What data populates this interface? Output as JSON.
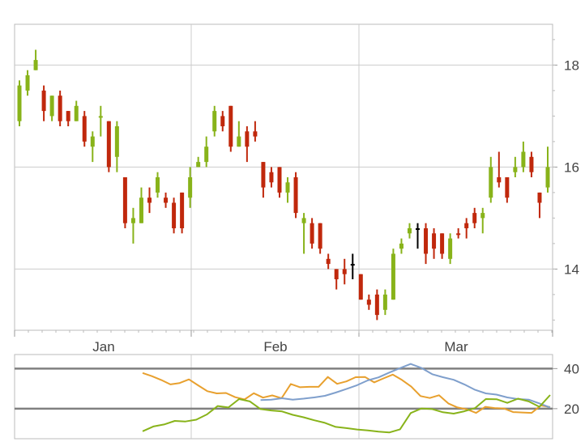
{
  "chart_data": [
    {
      "type": "ohlc",
      "x_tick_labels": [
        "Jan",
        "Feb",
        "Mar"
      ],
      "y_ticks": [
        14,
        16,
        18
      ],
      "ylim": [
        12.8,
        18.8
      ],
      "grid": true,
      "colors": {
        "up": "#88b31a",
        "down": "#c0280c",
        "neutral": "#000000"
      },
      "bars": [
        {
          "o": 16.9,
          "h": 17.7,
          "l": 16.8,
          "c": 17.6,
          "dir": "up"
        },
        {
          "o": 17.5,
          "h": 17.9,
          "l": 17.4,
          "c": 17.8,
          "dir": "up"
        },
        {
          "o": 17.9,
          "h": 18.3,
          "l": 17.9,
          "c": 18.1,
          "dir": "up"
        },
        {
          "o": 17.5,
          "h": 17.6,
          "l": 16.9,
          "c": 17.1,
          "dir": "down"
        },
        {
          "o": 17.0,
          "h": 17.4,
          "l": 16.9,
          "c": 17.4,
          "dir": "up"
        },
        {
          "o": 17.4,
          "h": 17.5,
          "l": 16.8,
          "c": 16.9,
          "dir": "down"
        },
        {
          "o": 17.1,
          "h": 17.1,
          "l": 16.8,
          "c": 16.9,
          "dir": "down"
        },
        {
          "o": 16.9,
          "h": 17.3,
          "l": 16.9,
          "c": 17.2,
          "dir": "up"
        },
        {
          "o": 17.0,
          "h": 17.1,
          "l": 16.4,
          "c": 16.5,
          "dir": "down"
        },
        {
          "o": 16.4,
          "h": 16.7,
          "l": 16.1,
          "c": 16.6,
          "dir": "up"
        },
        {
          "o": 17.0,
          "h": 17.2,
          "l": 16.6,
          "c": 17.0,
          "dir": "up"
        },
        {
          "o": 16.9,
          "h": 16.9,
          "l": 15.9,
          "c": 16.0,
          "dir": "down"
        },
        {
          "o": 16.2,
          "h": 16.9,
          "l": 15.9,
          "c": 16.8,
          "dir": "up"
        },
        {
          "o": 15.8,
          "h": 15.8,
          "l": 14.8,
          "c": 14.9,
          "dir": "down"
        },
        {
          "o": 15.0,
          "h": 15.2,
          "l": 14.5,
          "c": 14.9,
          "dir": "up"
        },
        {
          "o": 14.9,
          "h": 15.6,
          "l": 14.9,
          "c": 15.4,
          "dir": "up"
        },
        {
          "o": 15.4,
          "h": 15.6,
          "l": 15.1,
          "c": 15.3,
          "dir": "down"
        },
        {
          "o": 15.5,
          "h": 15.9,
          "l": 15.4,
          "c": 15.8,
          "dir": "up"
        },
        {
          "o": 15.4,
          "h": 15.5,
          "l": 15.2,
          "c": 15.3,
          "dir": "down"
        },
        {
          "o": 15.3,
          "h": 15.4,
          "l": 14.7,
          "c": 14.8,
          "dir": "down"
        },
        {
          "o": 15.5,
          "h": 15.5,
          "l": 14.7,
          "c": 14.8,
          "dir": "down"
        },
        {
          "o": 15.4,
          "h": 16.0,
          "l": 15.2,
          "c": 15.8,
          "dir": "up"
        },
        {
          "o": 16.0,
          "h": 16.2,
          "l": 16.0,
          "c": 16.1,
          "dir": "up"
        },
        {
          "o": 16.1,
          "h": 16.6,
          "l": 16.0,
          "c": 16.4,
          "dir": "up"
        },
        {
          "o": 16.7,
          "h": 17.2,
          "l": 16.6,
          "c": 17.1,
          "dir": "up"
        },
        {
          "o": 17.0,
          "h": 17.1,
          "l": 16.7,
          "c": 16.8,
          "dir": "down"
        },
        {
          "o": 17.2,
          "h": 17.2,
          "l": 16.3,
          "c": 16.4,
          "dir": "down"
        },
        {
          "o": 16.4,
          "h": 16.9,
          "l": 16.4,
          "c": 16.6,
          "dir": "up"
        },
        {
          "o": 16.7,
          "h": 16.8,
          "l": 16.1,
          "c": 16.4,
          "dir": "down"
        },
        {
          "o": 16.7,
          "h": 16.9,
          "l": 16.5,
          "c": 16.6,
          "dir": "down"
        },
        {
          "o": 16.1,
          "h": 16.1,
          "l": 15.4,
          "c": 15.6,
          "dir": "down"
        },
        {
          "o": 15.9,
          "h": 16.0,
          "l": 15.6,
          "c": 15.7,
          "dir": "down"
        },
        {
          "o": 16.0,
          "h": 16.0,
          "l": 15.4,
          "c": 15.5,
          "dir": "down"
        },
        {
          "o": 15.5,
          "h": 15.8,
          "l": 15.3,
          "c": 15.7,
          "dir": "up"
        },
        {
          "o": 15.8,
          "h": 15.9,
          "l": 15.0,
          "c": 15.1,
          "dir": "down"
        },
        {
          "o": 15.0,
          "h": 15.1,
          "l": 14.3,
          "c": 14.9,
          "dir": "up"
        },
        {
          "o": 14.9,
          "h": 15.0,
          "l": 14.4,
          "c": 14.5,
          "dir": "down"
        },
        {
          "o": 14.9,
          "h": 14.9,
          "l": 14.3,
          "c": 14.4,
          "dir": "down"
        },
        {
          "o": 14.2,
          "h": 14.3,
          "l": 14.0,
          "c": 14.1,
          "dir": "down"
        },
        {
          "o": 14.0,
          "h": 14.0,
          "l": 13.6,
          "c": 13.8,
          "dir": "down"
        },
        {
          "o": 14.0,
          "h": 14.2,
          "l": 13.7,
          "c": 13.9,
          "dir": "down"
        },
        {
          "o": 14.1,
          "h": 14.3,
          "l": 13.8,
          "c": 14.1,
          "dir": "neutral"
        },
        {
          "o": 13.9,
          "h": 13.9,
          "l": 13.4,
          "c": 13.4,
          "dir": "down"
        },
        {
          "o": 13.4,
          "h": 13.5,
          "l": 13.2,
          "c": 13.3,
          "dir": "down"
        },
        {
          "o": 13.5,
          "h": 13.6,
          "l": 13.0,
          "c": 13.1,
          "dir": "down"
        },
        {
          "o": 13.2,
          "h": 13.6,
          "l": 13.1,
          "c": 13.5,
          "dir": "up"
        },
        {
          "o": 13.4,
          "h": 14.4,
          "l": 13.4,
          "c": 14.3,
          "dir": "up"
        },
        {
          "o": 14.4,
          "h": 14.6,
          "l": 14.3,
          "c": 14.5,
          "dir": "up"
        },
        {
          "o": 14.7,
          "h": 14.9,
          "l": 14.6,
          "c": 14.8,
          "dir": "up"
        },
        {
          "o": 14.8,
          "h": 14.9,
          "l": 14.4,
          "c": 14.8,
          "dir": "neutral"
        },
        {
          "o": 14.8,
          "h": 14.9,
          "l": 14.1,
          "c": 14.3,
          "dir": "down"
        },
        {
          "o": 14.7,
          "h": 14.8,
          "l": 14.2,
          "c": 14.4,
          "dir": "down"
        },
        {
          "o": 14.7,
          "h": 14.7,
          "l": 14.2,
          "c": 14.3,
          "dir": "down"
        },
        {
          "o": 14.2,
          "h": 14.7,
          "l": 14.1,
          "c": 14.6,
          "dir": "up"
        },
        {
          "o": 14.7,
          "h": 14.8,
          "l": 14.6,
          "c": 14.7,
          "dir": "down"
        },
        {
          "o": 14.8,
          "h": 15.0,
          "l": 14.6,
          "c": 14.9,
          "dir": "down"
        },
        {
          "o": 15.1,
          "h": 15.2,
          "l": 14.8,
          "c": 14.9,
          "dir": "down"
        },
        {
          "o": 15.0,
          "h": 15.2,
          "l": 14.7,
          "c": 15.1,
          "dir": "up"
        },
        {
          "o": 15.4,
          "h": 16.2,
          "l": 15.3,
          "c": 16.0,
          "dir": "up"
        },
        {
          "o": 15.8,
          "h": 16.3,
          "l": 15.6,
          "c": 15.7,
          "dir": "down"
        },
        {
          "o": 15.8,
          "h": 15.8,
          "l": 15.3,
          "c": 15.4,
          "dir": "down"
        },
        {
          "o": 15.9,
          "h": 16.2,
          "l": 15.8,
          "c": 16.0,
          "dir": "up"
        },
        {
          "o": 16.0,
          "h": 16.5,
          "l": 15.9,
          "c": 16.3,
          "dir": "up"
        },
        {
          "o": 16.2,
          "h": 16.3,
          "l": 15.8,
          "c": 15.9,
          "dir": "down"
        },
        {
          "o": 15.5,
          "h": 15.5,
          "l": 15.0,
          "c": 15.3,
          "dir": "down"
        },
        {
          "o": 15.6,
          "h": 16.4,
          "l": 15.5,
          "c": 16.0,
          "dir": "up"
        }
      ]
    },
    {
      "type": "line",
      "y_ticks": [
        20,
        40
      ],
      "ylim": [
        5,
        47
      ],
      "reference_lines": [
        20,
        40
      ],
      "series": [
        {
          "color": "#e8a02e",
          "values": [
            37.8,
            36.2,
            34.3,
            32.1,
            32.8,
            34.6,
            31.6,
            28.7,
            27.6,
            27.8,
            25.7,
            24.6,
            27.7,
            25.5,
            26.6,
            25.2,
            32.3,
            30.7,
            30.9,
            30.9,
            35.8,
            32.4,
            33.6,
            35.7,
            35.8,
            33.1,
            35.1,
            37.0,
            34.3,
            31.0,
            26.3,
            25.3,
            26.7,
            22.6,
            20.6,
            19.7,
            17.9,
            20.9,
            20.3,
            20.1,
            18.3,
            18.1,
            17.9,
            21.6,
            20.8
          ]
        },
        {
          "color": "#7f9fcc",
          "values": [
            null,
            null,
            null,
            null,
            null,
            null,
            null,
            null,
            null,
            null,
            null,
            24.3,
            24.5,
            25.2,
            24.5,
            25.0,
            25.6,
            26.4,
            28.0,
            29.8,
            31.7,
            34.1,
            35.6,
            38.0,
            40.2,
            42.3,
            40.3,
            37.2,
            35.7,
            34.4,
            32.1,
            29.4,
            27.6,
            27.0,
            25.6,
            24.8,
            24.5,
            22.6,
            20.6
          ]
        },
        {
          "color": "#88b31a",
          "values": [
            8.7,
            11.1,
            12.1,
            13.9,
            13.6,
            14.5,
            17.1,
            21.3,
            20.6,
            24.8,
            23.6,
            19.8,
            19.1,
            18.6,
            16.9,
            15.7,
            14.2,
            12.9,
            10.9,
            10.3,
            9.6,
            9.1,
            8.5,
            8.1,
            9.7,
            17.8,
            20.1,
            19.8,
            18.2,
            17.5,
            18.7,
            20.3,
            24.8,
            24.7,
            22.9,
            25.0,
            23.6,
            20.9,
            26.8
          ]
        }
      ]
    }
  ]
}
